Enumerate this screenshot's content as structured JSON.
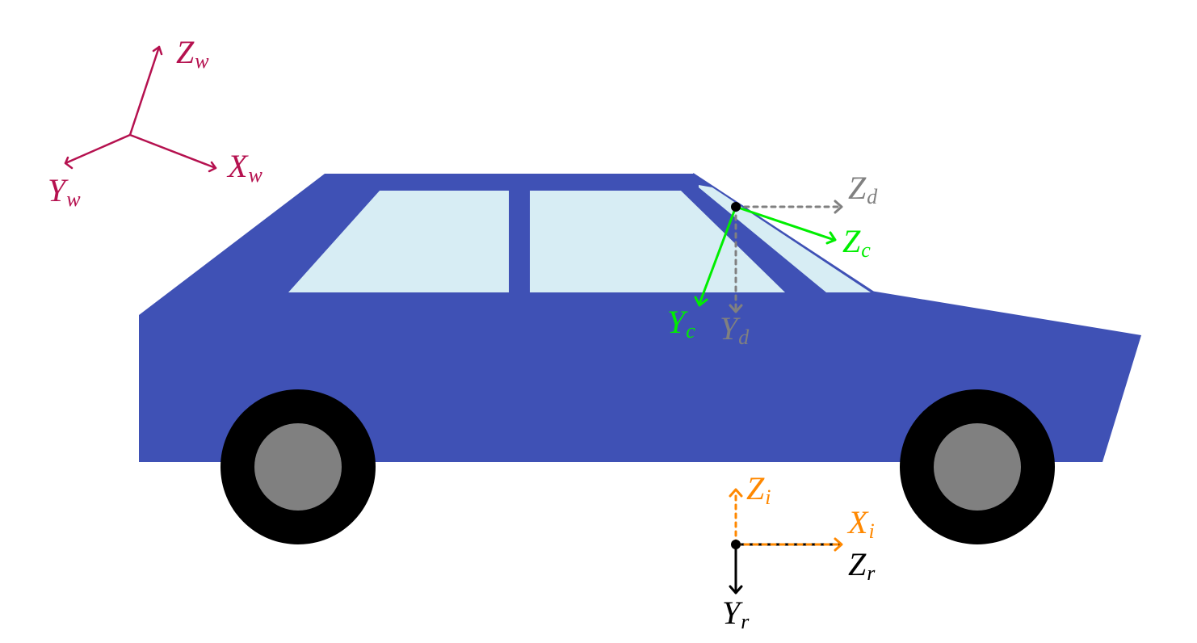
{
  "colors": {
    "world": "#b5114f",
    "car_body": "#3f51b5",
    "window": "#d7edf4",
    "tire": "#000000",
    "hub": "#808080",
    "camera": "#00ee00",
    "depth": "#808080",
    "imu": "#ff8800",
    "rig": "#000000",
    "origin": "#000000"
  },
  "icons": {
    "car": "car-icon",
    "wheel": "wheel-icon"
  },
  "frames": {
    "world": {
      "x": {
        "main": "X",
        "sub": "w"
      },
      "y": {
        "main": "Y",
        "sub": "w"
      },
      "z": {
        "main": "Z",
        "sub": "w"
      }
    },
    "camera": {
      "y": {
        "main": "Y",
        "sub": "c"
      },
      "z": {
        "main": "Z",
        "sub": "c"
      }
    },
    "depth": {
      "y": {
        "main": "Y",
        "sub": "d"
      },
      "z": {
        "main": "Z",
        "sub": "d"
      }
    },
    "imu": {
      "x": {
        "main": "X",
        "sub": "i"
      },
      "z": {
        "main": "Z",
        "sub": "i"
      }
    },
    "rig": {
      "y": {
        "main": "Y",
        "sub": "r"
      },
      "z": {
        "main": "Z",
        "sub": "r"
      }
    }
  }
}
